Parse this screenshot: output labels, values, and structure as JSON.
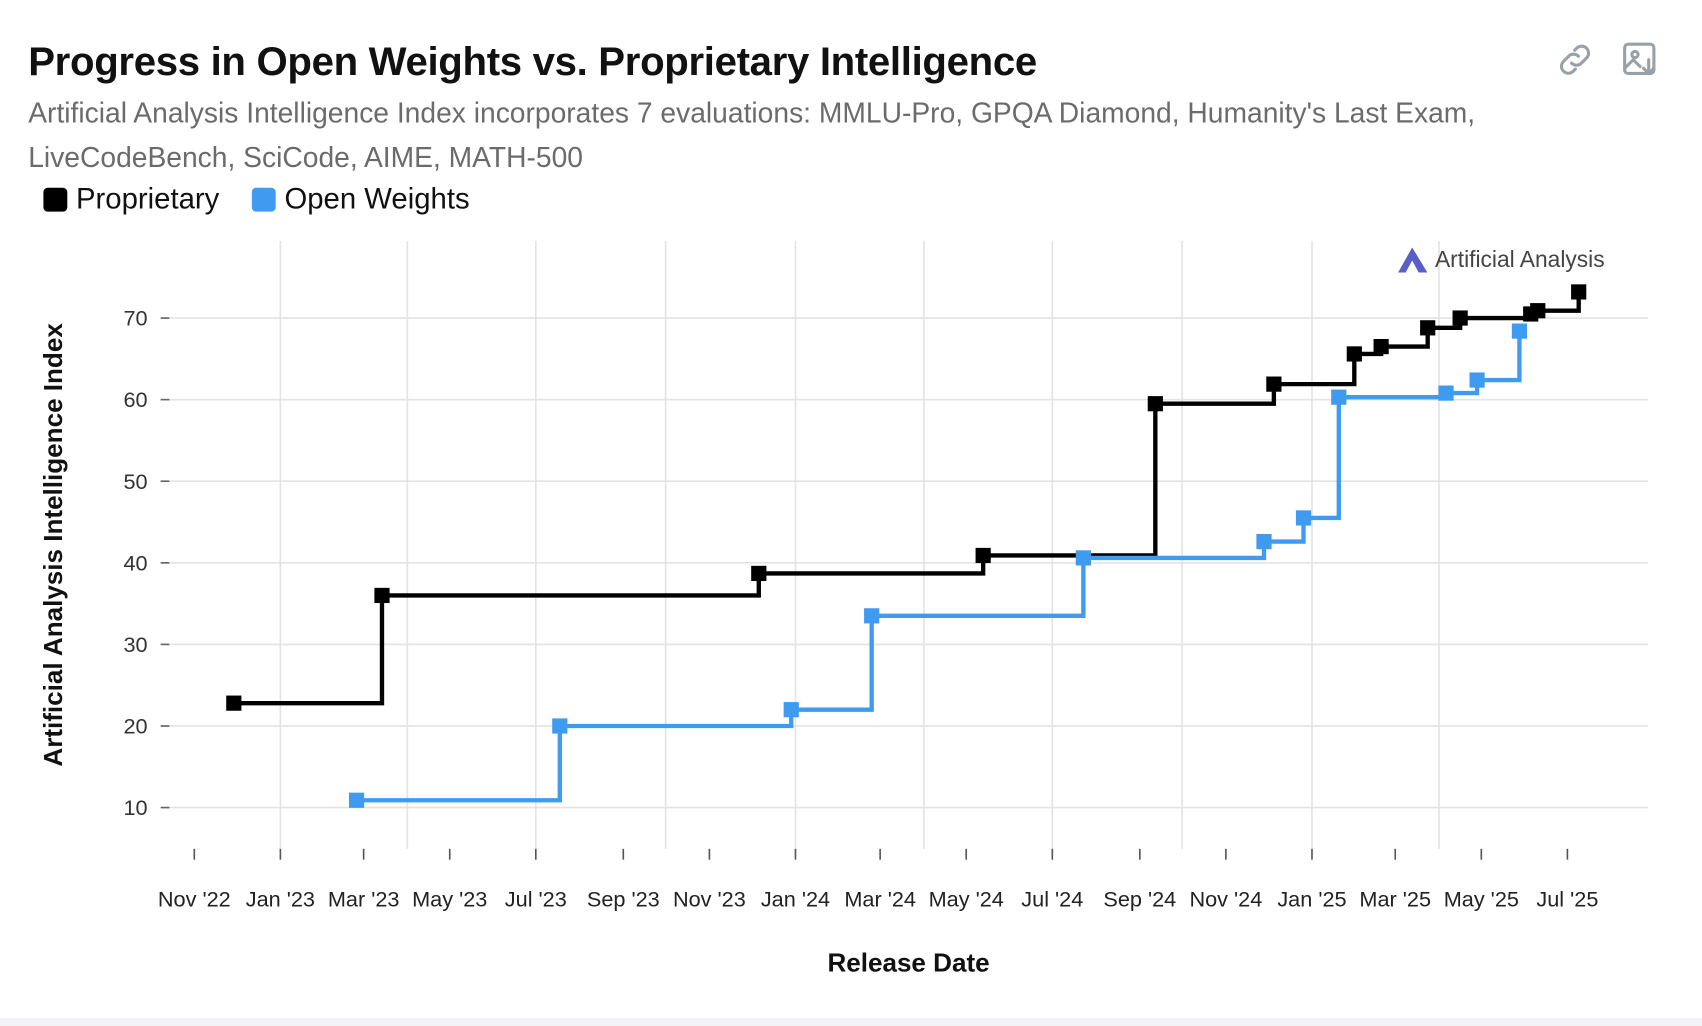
{
  "header": {
    "title": "Progress in Open Weights vs. Proprietary Intelligence",
    "subtitle": "Artificial Analysis Intelligence Index incorporates 7 evaluations: MMLU-Pro, GPQA Diamond, Humanity's Last Exam, LiveCodeBench, SciCode, AIME, MATH-500",
    "icons": [
      "link-icon",
      "download-image-icon"
    ]
  },
  "watermark": "Artificial Analysis",
  "chart_data": {
    "type": "line",
    "step": "after",
    "title": "Progress in Open Weights vs. Proprietary Intelligence",
    "xlabel": "Release Date",
    "ylabel": "Artificial Analysis Intelligence Index",
    "ylim": [
      5,
      79
    ],
    "yticks": [
      10,
      20,
      30,
      40,
      50,
      60,
      70
    ],
    "xlim": [
      "2022-10-20",
      "2025-08-15"
    ],
    "xticks": [
      "2022-11-01",
      "2023-01-01",
      "2023-03-01",
      "2023-05-01",
      "2023-07-01",
      "2023-09-01",
      "2023-11-01",
      "2024-01-01",
      "2024-03-01",
      "2024-05-01",
      "2024-07-01",
      "2024-09-01",
      "2024-11-01",
      "2025-01-01",
      "2025-03-01",
      "2025-05-01",
      "2025-07-01"
    ],
    "xtick_labels": [
      "Nov '22",
      "Jan '23",
      "Mar '23",
      "May '23",
      "Jul '23",
      "Sep '23",
      "Nov '23",
      "Jan '24",
      "Mar '24",
      "May '24",
      "Jul '24",
      "Sep '24",
      "Nov '24",
      "Jan '25",
      "Mar '25",
      "May '25",
      "Jul '25"
    ],
    "grid": true,
    "legend": "top-left",
    "colors": {
      "Proprietary": "#000000",
      "Open Weights": "#3f9bf0"
    },
    "series": [
      {
        "name": "Proprietary",
        "points": [
          [
            "2022-11-29",
            22.8
          ],
          [
            "2023-03-14",
            36.0
          ],
          [
            "2023-12-06",
            38.7
          ],
          [
            "2024-05-13",
            40.9
          ],
          [
            "2024-09-12",
            59.5
          ],
          [
            "2024-12-05",
            61.9
          ],
          [
            "2025-01-31",
            65.6
          ],
          [
            "2025-02-19",
            66.5
          ],
          [
            "2025-03-24",
            68.8
          ],
          [
            "2025-04-16",
            70.0
          ],
          [
            "2025-06-05",
            70.5
          ],
          [
            "2025-06-10",
            70.9
          ],
          [
            "2025-07-09",
            73.2
          ]
        ]
      },
      {
        "name": "Open Weights",
        "points": [
          [
            "2023-02-24",
            10.9
          ],
          [
            "2023-07-18",
            20.0
          ],
          [
            "2023-12-29",
            22.0
          ],
          [
            "2024-02-24",
            33.5
          ],
          [
            "2024-07-23",
            40.6
          ],
          [
            "2024-11-28",
            42.6
          ],
          [
            "2024-12-26",
            45.5
          ],
          [
            "2025-01-20",
            60.3
          ],
          [
            "2025-04-06",
            60.8
          ],
          [
            "2025-04-28",
            62.4
          ],
          [
            "2025-05-28",
            68.4
          ]
        ]
      }
    ]
  }
}
